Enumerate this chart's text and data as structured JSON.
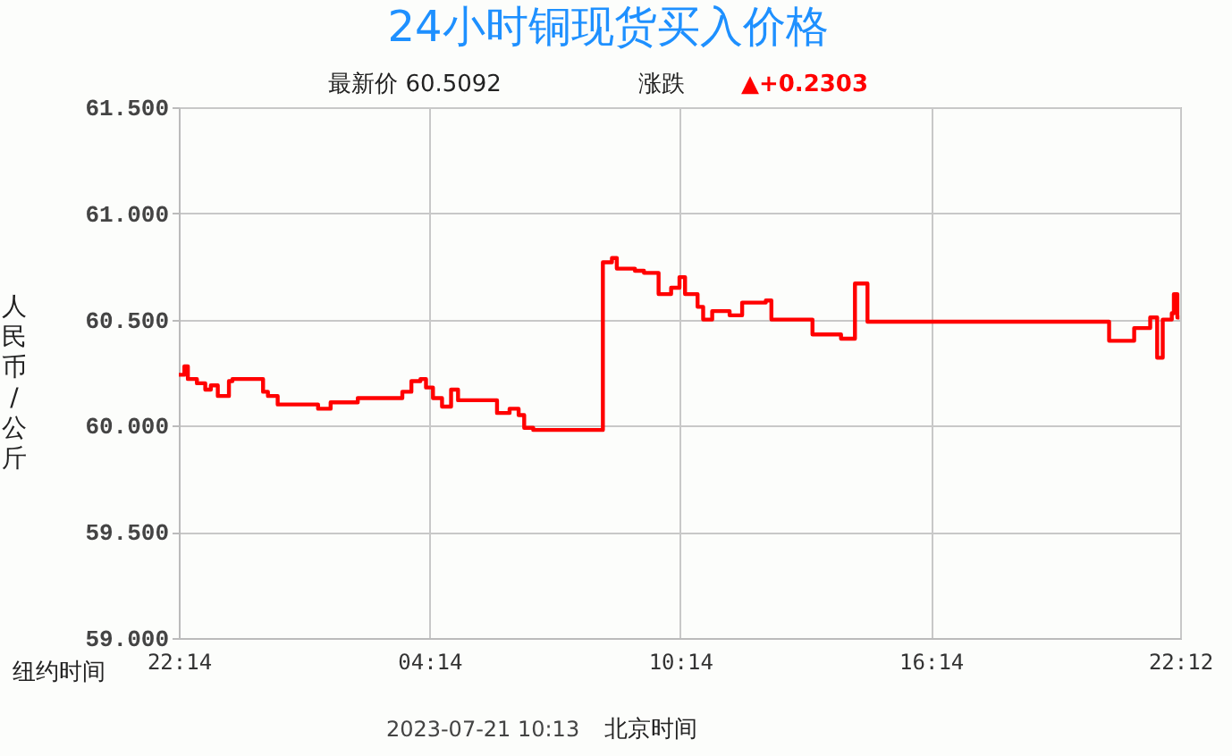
{
  "chart_data": {
    "type": "step",
    "title": "24小时铜现货买入价格",
    "subtitle": "最新价   60.5092",
    "xlabel": "纽约时间",
    "ylabel": "人民币/公斤",
    "annotations": [
      "涨跌",
      "▲+0.2303",
      "2023-07-21 10:13",
      "北京时间"
    ],
    "x": [
      "2023-07-19T22:14",
      "2023-07-19T22:22",
      "2023-07-19T22:27",
      "2023-07-19T22:40",
      "2023-07-19T22:52",
      "2023-07-19T23:00",
      "2023-07-19T23:10",
      "2023-07-19T23:26",
      "2023-07-19T23:31",
      "2023-07-19T23:57",
      "2023-07-20T00:15",
      "2023-07-20T00:22",
      "2023-07-20T00:36",
      "2023-07-20T01:01",
      "2023-07-20T01:34",
      "2023-07-20T01:52",
      "2023-07-20T02:31",
      "2023-07-20T03:22",
      "2023-07-20T03:35",
      "2023-07-20T03:48",
      "2023-07-20T04:01",
      "2023-07-20T04:09",
      "2023-07-20T04:19",
      "2023-07-20T04:32",
      "2023-07-20T04:45",
      "2023-07-20T04:55",
      "2023-07-20T05:18",
      "2023-07-20T05:51",
      "2023-07-20T06:09",
      "2023-07-20T06:22",
      "2023-07-20T06:30",
      "2023-07-20T06:43",
      "2023-07-20T08:18",
      "2023-07-20T08:23",
      "2023-07-20T08:36",
      "2023-07-20T08:43",
      "2023-07-20T09:09",
      "2023-07-20T09:22",
      "2023-07-20T09:43",
      "2023-07-20T10:01",
      "2023-07-20T10:13",
      "2023-07-20T10:21",
      "2023-07-20T10:39",
      "2023-07-20T10:47",
      "2023-07-20T11:00",
      "2023-07-20T11:25",
      "2023-07-20T11:43",
      "2023-07-20T12:17",
      "2023-07-20T12:25",
      "2023-07-20T13:24",
      "2023-07-20T14:05",
      "2023-07-20T14:25",
      "2023-07-20T14:43",
      "2023-07-20T20:22",
      "2023-07-20T20:30",
      "2023-07-20T21:06",
      "2023-07-20T21:29",
      "2023-07-20T21:39",
      "2023-07-20T21:47",
      "2023-07-20T22:00",
      "2023-07-20T22:03",
      "2023-07-20T22:08",
      "2023-07-20T22:11"
    ],
    "series": [
      {
        "color": "#ff0000",
        "values": [
          60.24,
          60.28,
          60.22,
          60.2,
          60.17,
          60.19,
          60.14,
          60.21,
          60.22,
          60.22,
          60.16,
          60.14,
          60.1,
          60.1,
          60.08,
          60.11,
          60.13,
          60.13,
          60.16,
          60.21,
          60.22,
          60.18,
          60.13,
          60.09,
          60.17,
          60.12,
          60.12,
          60.06,
          60.08,
          60.05,
          59.99,
          59.98,
          59.98,
          60.77,
          60.79,
          60.74,
          60.73,
          60.72,
          60.62,
          60.65,
          60.7,
          60.62,
          60.56,
          60.5,
          60.54,
          60.52,
          60.58,
          60.59,
          60.5,
          60.43,
          60.41,
          60.67,
          60.49,
          60.49,
          60.4,
          60.46,
          60.51,
          60.32,
          60.5,
          60.53,
          60.62,
          60.51,
          60.51
        ]
      }
    ],
    "xlim": [
      "2023-07-19T22:14",
      "2023-07-20T22:12"
    ],
    "xticks": [
      {
        "value": "2023-07-19T22:14",
        "label": "22:14"
      },
      {
        "value": "2023-07-20T04:14",
        "label": "04:14"
      },
      {
        "value": "2023-07-20T10:14",
        "label": "10:14"
      },
      {
        "value": "2023-07-20T16:14",
        "label": "16:14"
      },
      {
        "value": "2023-07-20T22:12",
        "label": "22:12"
      }
    ],
    "ylim": [
      59,
      61.5
    ],
    "yticks": [
      {
        "value": 59,
        "label": "59.000"
      },
      {
        "value": 59.5,
        "label": "59.500"
      },
      {
        "value": 60,
        "label": "60.000"
      },
      {
        "value": 60.5,
        "label": "60.500"
      },
      {
        "value": 61,
        "label": "61.000"
      },
      {
        "value": 61.5,
        "label": "61.500"
      }
    ],
    "grid": true,
    "line_style": "solid",
    "marker": "none"
  }
}
